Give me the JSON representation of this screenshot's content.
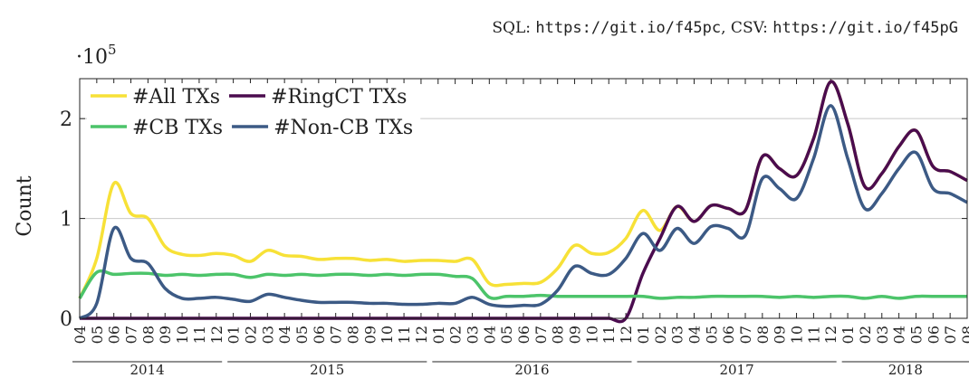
{
  "chart_data": {
    "type": "line",
    "notes": [
      "SQL:",
      "https://git.io/f45pc",
      ", CSV:",
      "https://git.io/f45pG"
    ],
    "y_multiplier": "·10",
    "y_multiplier_exp": "5",
    "ylabel": "Count",
    "ylim": [
      0,
      2.4
    ],
    "yticks": [
      0,
      1,
      2
    ],
    "grid": true,
    "legend": "upper left",
    "categories": [
      "04",
      "05",
      "06",
      "07",
      "08",
      "09",
      "10",
      "11",
      "12",
      "01",
      "02",
      "03",
      "04",
      "05",
      "06",
      "07",
      "08",
      "09",
      "10",
      "11",
      "12",
      "01",
      "02",
      "03",
      "04",
      "05",
      "06",
      "07",
      "08",
      "09",
      "10",
      "11",
      "12",
      "01",
      "02",
      "03",
      "04",
      "05",
      "06",
      "07",
      "08",
      "09",
      "10",
      "11",
      "12",
      "01",
      "02",
      "03",
      "04",
      "05",
      "06",
      "07",
      "08"
    ],
    "groups": [
      {
        "label": "2014",
        "count": 9
      },
      {
        "label": "2015",
        "count": 12
      },
      {
        "label": "2016",
        "count": 12
      },
      {
        "label": "2017",
        "count": 12
      },
      {
        "label": "2018",
        "count": 8
      }
    ],
    "series": [
      {
        "name": "#All TXs",
        "color": "#f7e137",
        "values": [
          0.2,
          0.6,
          1.35,
          1.05,
          1.0,
          0.72,
          0.64,
          0.63,
          0.65,
          0.63,
          0.57,
          0.68,
          0.63,
          0.62,
          0.59,
          0.6,
          0.6,
          0.58,
          0.59,
          0.57,
          0.58,
          0.58,
          0.57,
          0.59,
          0.35,
          0.34,
          0.35,
          0.36,
          0.5,
          0.73,
          0.65,
          0.66,
          0.8,
          1.08,
          0.88,
          1.12,
          0.97,
          1.13,
          1.1,
          1.08,
          1.62,
          1.5,
          1.43,
          1.8,
          2.37,
          1.95,
          1.32,
          1.45,
          1.72,
          1.88,
          1.52,
          1.47,
          1.38
        ]
      },
      {
        "name": "#RingCT TXs",
        "color": "#4b0c4f",
        "values": [
          0,
          0,
          0,
          0,
          0,
          0,
          0,
          0,
          0,
          0,
          0,
          0,
          0,
          0,
          0,
          0,
          0,
          0,
          0,
          0,
          0,
          0,
          0,
          0,
          0,
          0,
          0,
          0,
          0,
          0,
          0,
          0,
          0,
          0.45,
          0.8,
          1.12,
          0.97,
          1.13,
          1.1,
          1.08,
          1.62,
          1.5,
          1.43,
          1.8,
          2.37,
          1.95,
          1.32,
          1.45,
          1.72,
          1.88,
          1.52,
          1.47,
          1.38
        ]
      },
      {
        "name": "#CB TXs",
        "color": "#4cc46a",
        "values": [
          0.2,
          0.46,
          0.44,
          0.45,
          0.45,
          0.43,
          0.44,
          0.43,
          0.44,
          0.44,
          0.41,
          0.44,
          0.43,
          0.44,
          0.43,
          0.44,
          0.44,
          0.43,
          0.44,
          0.43,
          0.44,
          0.44,
          0.42,
          0.4,
          0.21,
          0.22,
          0.22,
          0.23,
          0.22,
          0.22,
          0.22,
          0.22,
          0.22,
          0.22,
          0.2,
          0.21,
          0.21,
          0.22,
          0.22,
          0.22,
          0.22,
          0.21,
          0.22,
          0.21,
          0.22,
          0.22,
          0.2,
          0.22,
          0.2,
          0.22,
          0.22,
          0.22,
          0.22
        ]
      },
      {
        "name": "#Non-CB TXs",
        "color": "#3c5a85",
        "values": [
          0,
          0.15,
          0.9,
          0.6,
          0.55,
          0.3,
          0.2,
          0.2,
          0.21,
          0.19,
          0.17,
          0.24,
          0.21,
          0.18,
          0.16,
          0.16,
          0.16,
          0.15,
          0.15,
          0.14,
          0.14,
          0.15,
          0.15,
          0.21,
          0.14,
          0.12,
          0.13,
          0.14,
          0.28,
          0.52,
          0.45,
          0.44,
          0.6,
          0.85,
          0.68,
          0.9,
          0.75,
          0.92,
          0.9,
          0.83,
          1.4,
          1.3,
          1.2,
          1.6,
          2.13,
          1.6,
          1.1,
          1.25,
          1.5,
          1.66,
          1.3,
          1.25,
          1.16
        ]
      }
    ]
  }
}
